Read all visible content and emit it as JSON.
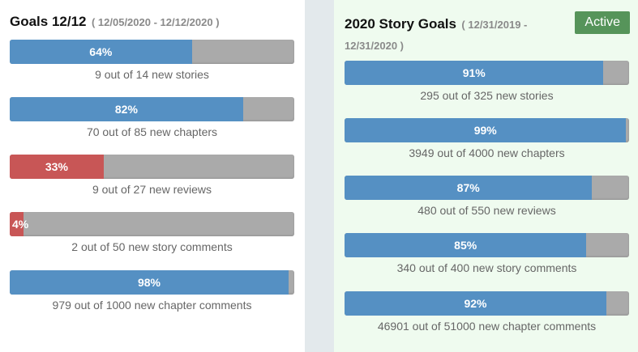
{
  "left": {
    "title": "Goals 12/12",
    "range": "( 12/05/2020 - 12/12/2020 )",
    "goals": [
      {
        "percent_label": "64%",
        "percent": 64,
        "caption": "9 out of 14 new stories",
        "color": "#5590c3"
      },
      {
        "percent_label": "82%",
        "percent": 82,
        "caption": "70 out of 85 new chapters",
        "color": "#5590c3"
      },
      {
        "percent_label": "33%",
        "percent": 33,
        "caption": "9 out of 27 new reviews",
        "color": "#c85656"
      },
      {
        "percent_label": "4%",
        "percent": 4,
        "caption": "2 out of 50 new story comments",
        "color": "#c85656"
      },
      {
        "percent_label": "98%",
        "percent": 98,
        "caption": "979 out of 1000 new chapter comments",
        "color": "#5590c3"
      }
    ]
  },
  "right": {
    "title": "2020 Story Goals",
    "range": "( 12/31/2019 - 12/31/2020 )",
    "status": "Active",
    "goals": [
      {
        "percent_label": "91%",
        "percent": 91,
        "caption": "295 out of 325 new stories",
        "color": "#5590c3"
      },
      {
        "percent_label": "99%",
        "percent": 99,
        "caption": "3949 out of 4000 new chapters",
        "color": "#5590c3"
      },
      {
        "percent_label": "87%",
        "percent": 87,
        "caption": "480 out of 550 new reviews",
        "color": "#5590c3"
      },
      {
        "percent_label": "85%",
        "percent": 85,
        "caption": "340 out of 400 new story comments",
        "color": "#5590c3"
      },
      {
        "percent_label": "92%",
        "percent": 92,
        "caption": "46901 out of 51000 new chapter comments",
        "color": "#5590c3"
      }
    ]
  }
}
